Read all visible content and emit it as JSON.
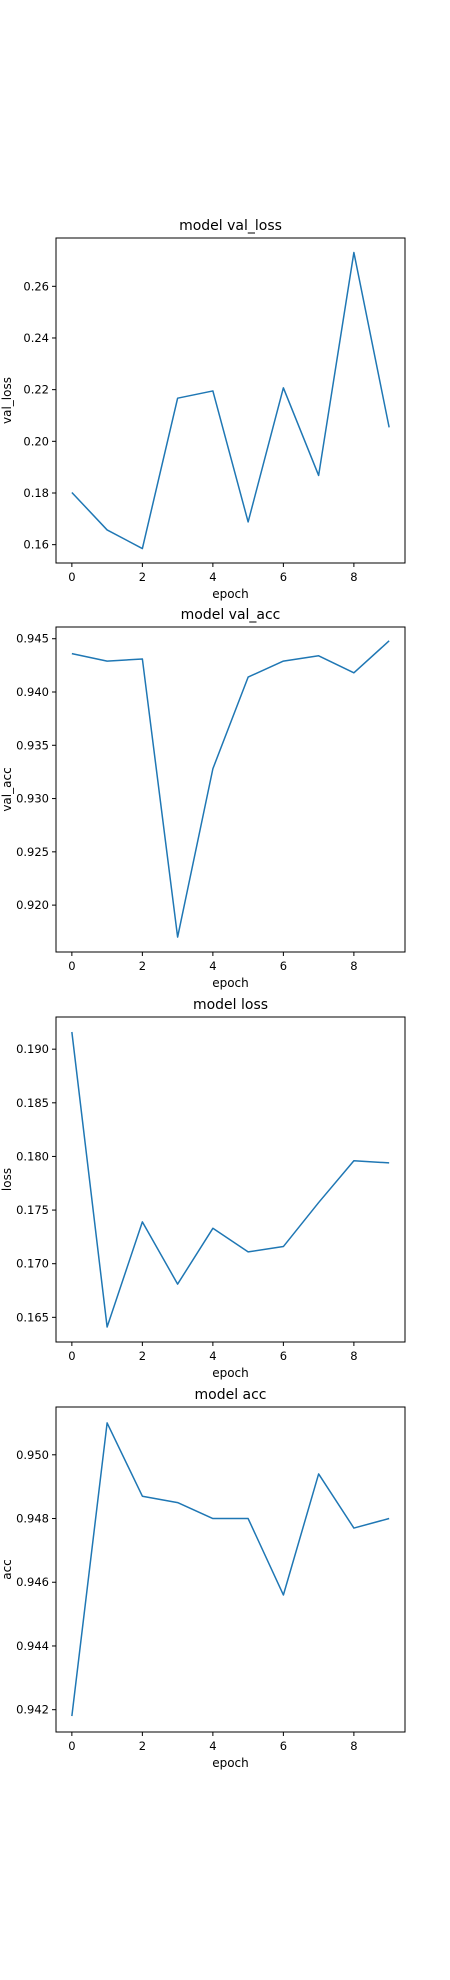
{
  "chart_data": [
    {
      "type": "line",
      "title": "model val_loss",
      "xlabel": "epoch",
      "ylabel": "val_loss",
      "x": [
        0,
        1,
        2,
        3,
        4,
        5,
        6,
        7,
        8,
        9
      ],
      "series": [
        {
          "values": [
            0.1802,
            0.1657,
            0.1585,
            0.2167,
            0.2195,
            0.1688,
            0.2207,
            0.1868,
            0.2731,
            0.2054
          ]
        }
      ],
      "xticks": [
        "0",
        "2",
        "4",
        "6",
        "8"
      ],
      "yticks": [
        "0.16",
        "0.18",
        "0.20",
        "0.22",
        "0.24",
        "0.26"
      ],
      "xlim": [
        -0.45,
        9.45
      ],
      "ylim": [
        0.1529,
        0.2787
      ],
      "grid": false,
      "color": "#1f77b4"
    },
    {
      "type": "line",
      "title": "model val_acc",
      "xlabel": "epoch",
      "ylabel": "val_acc",
      "x": [
        0,
        1,
        2,
        3,
        4,
        5,
        6,
        7,
        8,
        9
      ],
      "series": [
        {
          "values": [
            0.9436,
            0.9429,
            0.9431,
            0.917,
            0.9328,
            0.9414,
            0.9429,
            0.9434,
            0.9418,
            0.9448
          ]
        }
      ],
      "xticks": [
        "0",
        "2",
        "4",
        "6",
        "8"
      ],
      "yticks": [
        "0.920",
        "0.925",
        "0.930",
        "0.935",
        "0.940",
        "0.945"
      ],
      "xlim": [
        -0.45,
        9.45
      ],
      "ylim": [
        0.9156,
        0.9461
      ],
      "grid": false,
      "color": "#1f77b4"
    },
    {
      "type": "line",
      "title": "model loss",
      "xlabel": "epoch",
      "ylabel": "loss",
      "x": [
        0,
        1,
        2,
        3,
        4,
        5,
        6,
        7,
        8,
        9
      ],
      "series": [
        {
          "values": [
            0.1916,
            0.1641,
            0.1739,
            0.1681,
            0.1733,
            0.1711,
            0.1716,
            0.1757,
            0.1796,
            0.1794
          ]
        }
      ],
      "xticks": [
        "0",
        "2",
        "4",
        "6",
        "8"
      ],
      "yticks": [
        "0.165",
        "0.170",
        "0.175",
        "0.180",
        "0.185",
        "0.190"
      ],
      "xlim": [
        -0.45,
        9.45
      ],
      "ylim": [
        0.1627,
        0.193
      ],
      "grid": false,
      "color": "#1f77b4"
    },
    {
      "type": "line",
      "title": "model acc",
      "xlabel": "epoch",
      "ylabel": "acc",
      "x": [
        0,
        1,
        2,
        3,
        4,
        5,
        6,
        7,
        8,
        9
      ],
      "series": [
        {
          "values": [
            0.9418,
            0.951,
            0.9487,
            0.9485,
            0.948,
            0.948,
            0.9456,
            0.9494,
            0.9477,
            0.948
          ]
        }
      ],
      "xticks": [
        "0",
        "2",
        "4",
        "6",
        "8"
      ],
      "yticks": [
        "0.942",
        "0.944",
        "0.946",
        "0.948",
        "0.950"
      ],
      "xlim": [
        -0.45,
        9.45
      ],
      "ylim": [
        0.9413,
        0.9515
      ],
      "grid": false,
      "color": "#1f77b4"
    }
  ]
}
